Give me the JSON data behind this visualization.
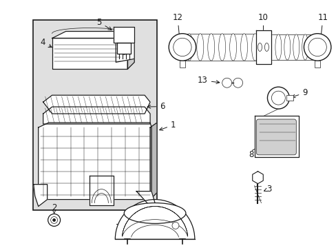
{
  "bg_color": "#ffffff",
  "line_color": "#1a1a1a",
  "box_bg": "#e8e8e8",
  "fig_width": 4.89,
  "fig_height": 3.6,
  "dpi": 100,
  "font_size": 8.5,
  "lw_main": 0.9,
  "lw_thin": 0.5
}
